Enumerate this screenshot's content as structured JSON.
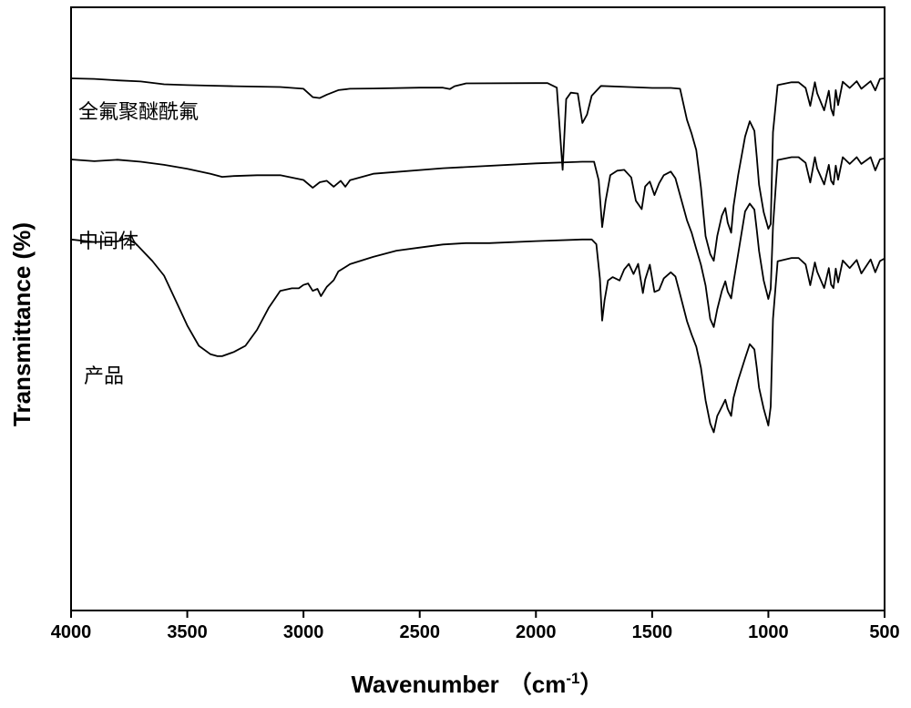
{
  "chart_data": {
    "type": "line",
    "title": "",
    "xlabel": "Wavenumber",
    "xlabel_unit": "（cm",
    "xlabel_unit_sup": "-1",
    "xlabel_unit_close": "）",
    "ylabel": "Transmittance (%)",
    "xlim": [
      4000,
      500
    ],
    "x_ticks": [
      "4000",
      "3500",
      "3000",
      "2500",
      "2000",
      "1500",
      "1000",
      "500"
    ],
    "series": [
      {
        "name": "全氟聚醚酰氟",
        "x": [
          4000,
          3900,
          3800,
          3700,
          3600,
          3500,
          3400,
          3300,
          3100,
          3000,
          2960,
          2930,
          2900,
          2850,
          2800,
          2700,
          2500,
          2400,
          2370,
          2350,
          2300,
          2000,
          1950,
          1910,
          1885,
          1870,
          1850,
          1820,
          1800,
          1780,
          1760,
          1720,
          1600,
          1500,
          1420,
          1380,
          1350,
          1330,
          1310,
          1290,
          1270,
          1250,
          1235,
          1220,
          1200,
          1185,
          1175,
          1160,
          1150,
          1130,
          1100,
          1080,
          1060,
          1050,
          1040,
          1020,
          1000,
          990,
          980,
          960,
          900,
          870,
          840,
          820,
          800,
          790,
          760,
          740,
          730,
          720,
          710,
          700,
          680,
          650,
          620,
          600,
          560,
          540,
          520,
          500
        ],
        "y": [
          100,
          99.8,
          99.3,
          98.9,
          97.9,
          97.6,
          97.4,
          97.2,
          96.9,
          96.3,
          93.3,
          93.0,
          94.2,
          95.8,
          96.3,
          96.4,
          96.7,
          96.7,
          96.2,
          97.2,
          98.2,
          98.3,
          98.3,
          96.7,
          67.4,
          92.6,
          94.9,
          94.6,
          84.1,
          87.1,
          93.8,
          97.3,
          96.9,
          96.6,
          96.6,
          96.3,
          85.2,
          80.3,
          74.4,
          61.2,
          43.8,
          37.4,
          35.0,
          43.8,
          51.1,
          53.8,
          48.6,
          45.0,
          54.5,
          65.6,
          79.3,
          84.7,
          81.3,
          72.0,
          62.1,
          52.3,
          46.4,
          48.1,
          80.8,
          97.6,
          98.6,
          98.6,
          96.6,
          90.2,
          98.6,
          94.7,
          88.6,
          95.6,
          89.2,
          86.8,
          95.8,
          90.5,
          98.8,
          96.6,
          99.0,
          96.3,
          99.0,
          95.7,
          99.8,
          100
        ]
      },
      {
        "name": "中间体",
        "x": [
          4000,
          3900,
          3800,
          3700,
          3600,
          3500,
          3400,
          3350,
          3300,
          3200,
          3100,
          3000,
          2960,
          2930,
          2900,
          2870,
          2840,
          2820,
          2800,
          2700,
          2400,
          2000,
          1800,
          1750,
          1730,
          1715,
          1700,
          1680,
          1650,
          1620,
          1590,
          1570,
          1545,
          1530,
          1510,
          1490,
          1470,
          1450,
          1420,
          1400,
          1380,
          1350,
          1330,
          1310,
          1290,
          1270,
          1250,
          1235,
          1220,
          1200,
          1185,
          1175,
          1160,
          1150,
          1130,
          1100,
          1080,
          1060,
          1050,
          1040,
          1020,
          1000,
          990,
          980,
          960,
          900,
          870,
          840,
          820,
          800,
          790,
          760,
          740,
          730,
          720,
          710,
          700,
          680,
          650,
          620,
          600,
          560,
          540,
          520,
          500
        ],
        "y": [
          71.1,
          70.5,
          71.0,
          70.3,
          69.2,
          67.8,
          66.0,
          64.9,
          65.2,
          65.5,
          65.5,
          63.8,
          61.0,
          63.0,
          63.5,
          61.4,
          63.5,
          61.4,
          63.7,
          66.0,
          68.0,
          69.7,
          70.3,
          70.3,
          63.7,
          47.0,
          56.4,
          65.5,
          67.1,
          67.4,
          64.7,
          56.4,
          53.4,
          61.5,
          63.2,
          58.4,
          62.6,
          65.5,
          66.8,
          64.4,
          58.4,
          49.4,
          45.0,
          39.2,
          33.6,
          26.2,
          14.3,
          11.4,
          17.7,
          24.3,
          27.7,
          24.0,
          21.6,
          27.4,
          37.5,
          52.6,
          55.4,
          53.2,
          46.0,
          38.5,
          28.0,
          21.4,
          25.0,
          47.2,
          70.9,
          71.9,
          71.9,
          69.9,
          62.9,
          71.9,
          67.9,
          62.2,
          69.2,
          63.5,
          62.2,
          68.9,
          63.9,
          71.9,
          69.5,
          71.9,
          69.5,
          71.9,
          67.2,
          71.1,
          71.5
        ]
      },
      {
        "name": "产品",
        "x": [
          4000,
          3900,
          3800,
          3760,
          3720,
          3650,
          3600,
          3550,
          3500,
          3450,
          3400,
          3370,
          3350,
          3300,
          3250,
          3200,
          3150,
          3100,
          3050,
          3020,
          3000,
          2980,
          2960,
          2940,
          2925,
          2900,
          2870,
          2850,
          2800,
          2700,
          2600,
          2500,
          2400,
          2300,
          2200,
          2000,
          1800,
          1760,
          1740,
          1725,
          1715,
          1705,
          1690,
          1670,
          1640,
          1620,
          1600,
          1580,
          1560,
          1540,
          1530,
          1510,
          1490,
          1470,
          1450,
          1420,
          1400,
          1380,
          1350,
          1330,
          1310,
          1290,
          1270,
          1250,
          1235,
          1220,
          1200,
          1185,
          1175,
          1160,
          1150,
          1130,
          1100,
          1080,
          1060,
          1050,
          1040,
          1020,
          1000,
          990,
          980,
          960,
          900,
          870,
          840,
          820,
          800,
          790,
          760,
          740,
          730,
          720,
          710,
          700,
          680,
          650,
          620,
          600,
          560,
          540,
          520,
          500
        ],
        "y": [
          42.6,
          41.7,
          41.9,
          43.0,
          41.0,
          34.9,
          29.7,
          20.9,
          11.9,
          4.7,
          1.7,
          1.0,
          1.0,
          2.5,
          4.7,
          10.4,
          18.2,
          24.3,
          25.2,
          25.2,
          26.4,
          26.9,
          24.3,
          25.0,
          22.4,
          25.7,
          28.1,
          31.2,
          33.8,
          36.4,
          38.6,
          39.7,
          40.8,
          41.3,
          41.3,
          42.0,
          42.6,
          42.6,
          40.9,
          28.7,
          13.7,
          20.9,
          28.0,
          29.2,
          28.0,
          31.9,
          33.9,
          30.3,
          33.9,
          23.5,
          28.3,
          33.6,
          23.9,
          24.6,
          28.7,
          30.9,
          29.4,
          23.1,
          13.5,
          8.7,
          4.4,
          -3.1,
          -14.7,
          -23.0,
          -26.1,
          -20.3,
          -17.0,
          -14.5,
          -17.7,
          -20.3,
          -13.8,
          -7.5,
          0.3,
          5.3,
          3.4,
          -3.1,
          -10.2,
          -17.7,
          -23.7,
          -16.9,
          14.3,
          34.8,
          36.0,
          36.0,
          33.7,
          26.3,
          34.4,
          31.1,
          25.3,
          32.4,
          26.5,
          25.3,
          32.2,
          27.3,
          35.1,
          32.4,
          35.3,
          30.5,
          35.5,
          30.9,
          34.9,
          35.8
        ]
      }
    ]
  }
}
